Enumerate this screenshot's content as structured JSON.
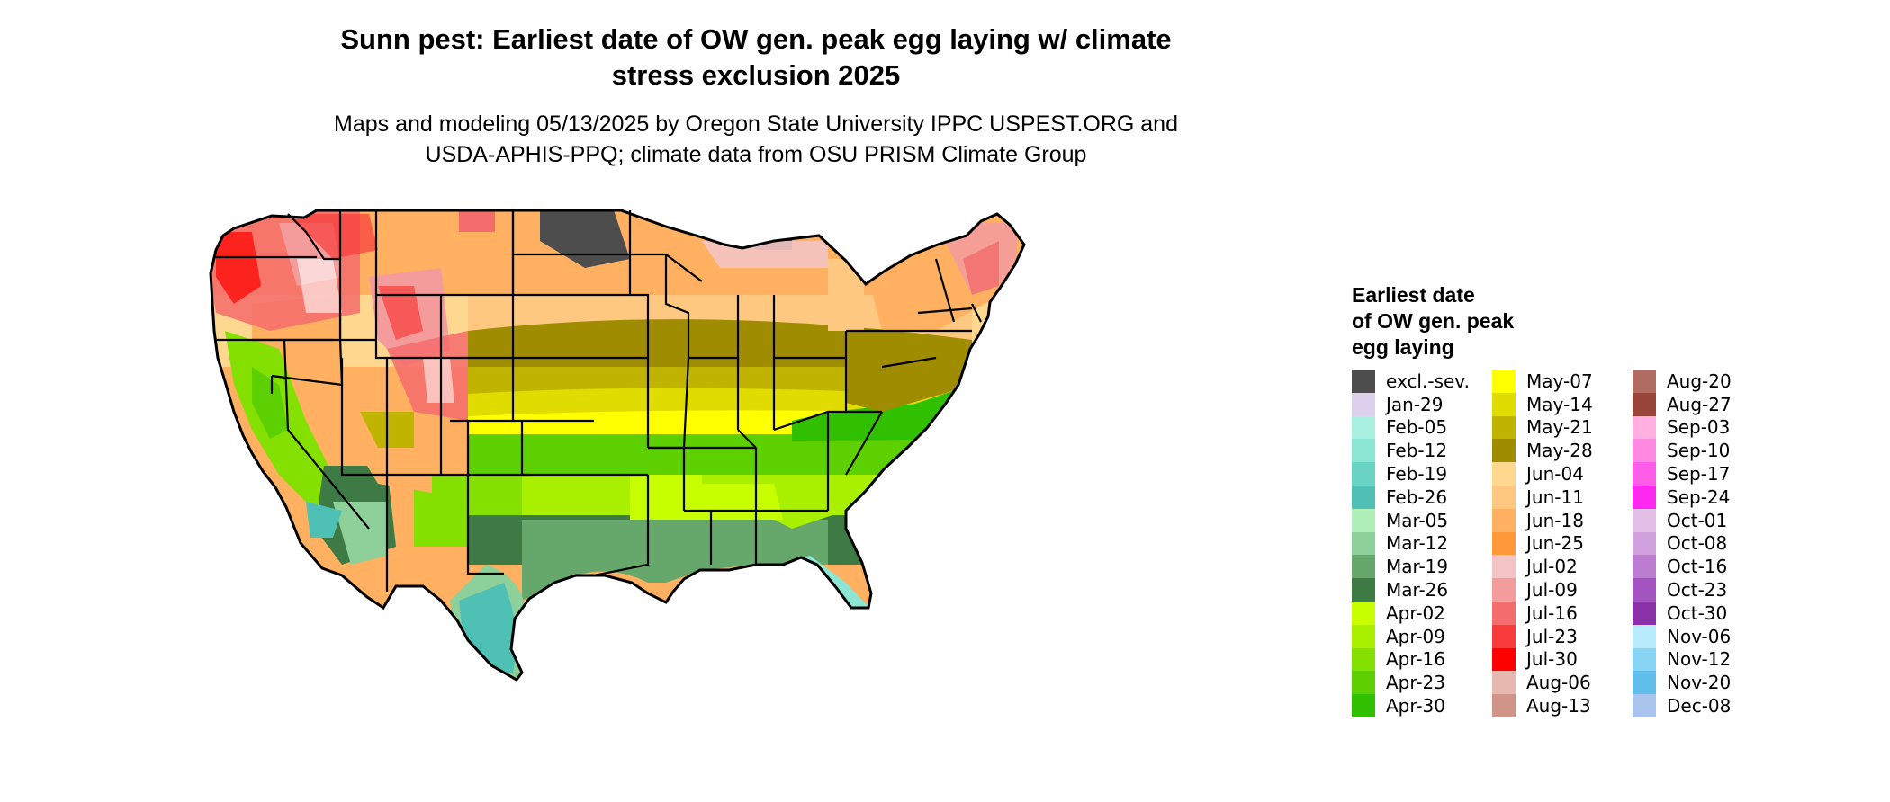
{
  "title": "Sunn pest: Earliest date of OW gen. peak egg laying w/ climate stress exclusion 2025",
  "title_lines": [
    "Sunn pest: Earliest date of OW gen. peak egg laying w/ climate",
    "stress exclusion 2025"
  ],
  "subtitle_lines": [
    "Maps and modeling 05/13/2025 by Oregon State University IPPC USPEST.ORG and",
    "USDA-APHIS-PPQ; climate data from OSU PRISM Climate Group"
  ],
  "legend": {
    "title_lines": [
      "Earliest date",
      "of OW gen. peak",
      "egg laying"
    ],
    "columns": [
      [
        {
          "label": "excl.-sev.",
          "color": "#4d4d4d"
        },
        {
          "label": "Jan-29",
          "color": "#dcd0ec"
        },
        {
          "label": "Feb-05",
          "color": "#a8f0e0"
        },
        {
          "label": "Feb-12",
          "color": "#8ce6d4"
        },
        {
          "label": "Feb-19",
          "color": "#6ad4c4"
        },
        {
          "label": "Feb-26",
          "color": "#4fc0b4"
        },
        {
          "label": "Mar-05",
          "color": "#b0f0b8"
        },
        {
          "label": "Mar-12",
          "color": "#8ed09a"
        },
        {
          "label": "Mar-19",
          "color": "#66a86c"
        },
        {
          "label": "Mar-26",
          "color": "#3e7a44"
        },
        {
          "label": "Apr-02",
          "color": "#c8ff00"
        },
        {
          "label": "Apr-09",
          "color": "#a8f000"
        },
        {
          "label": "Apr-16",
          "color": "#84e000"
        },
        {
          "label": "Apr-23",
          "color": "#5cd000"
        },
        {
          "label": "Apr-30",
          "color": "#30c000"
        }
      ],
      [
        {
          "label": "May-07",
          "color": "#ffff00"
        },
        {
          "label": "May-14",
          "color": "#e0dc00"
        },
        {
          "label": "May-21",
          "color": "#c0b400"
        },
        {
          "label": "May-28",
          "color": "#a08c00"
        },
        {
          "label": "Jun-04",
          "color": "#ffd890"
        },
        {
          "label": "Jun-11",
          "color": "#ffc880"
        },
        {
          "label": "Jun-18",
          "color": "#ffb060"
        },
        {
          "label": "Jun-25",
          "color": "#ff9838"
        },
        {
          "label": "Jul-02",
          "color": "#f4c4c4"
        },
        {
          "label": "Jul-09",
          "color": "#f49c9c"
        },
        {
          "label": "Jul-16",
          "color": "#f46c6c"
        },
        {
          "label": "Jul-23",
          "color": "#f83c3c"
        },
        {
          "label": "Jul-30",
          "color": "#ff0000"
        },
        {
          "label": "Aug-06",
          "color": "#e6b8b0"
        },
        {
          "label": "Aug-13",
          "color": "#d09488"
        }
      ],
      [
        {
          "label": "Aug-20",
          "color": "#b06c60"
        },
        {
          "label": "Aug-27",
          "color": "#984438"
        },
        {
          "label": "Sep-03",
          "color": "#ffb0e0"
        },
        {
          "label": "Sep-10",
          "color": "#ff88e0"
        },
        {
          "label": "Sep-17",
          "color": "#ff5ce8"
        },
        {
          "label": "Sep-24",
          "color": "#ff28f0"
        },
        {
          "label": "Oct-01",
          "color": "#e4c0e8"
        },
        {
          "label": "Oct-08",
          "color": "#d0a0dc"
        },
        {
          "label": "Oct-16",
          "color": "#bc7cd0"
        },
        {
          "label": "Oct-23",
          "color": "#a454c0"
        },
        {
          "label": "Oct-30",
          "color": "#8a30a8"
        },
        {
          "label": "Nov-06",
          "color": "#b8ecfc"
        },
        {
          "label": "Nov-12",
          "color": "#88d4f4"
        },
        {
          "label": "Nov-20",
          "color": "#60bce8"
        },
        {
          "label": "Dec-08",
          "color": "#a8c4ec"
        }
      ]
    ]
  }
}
